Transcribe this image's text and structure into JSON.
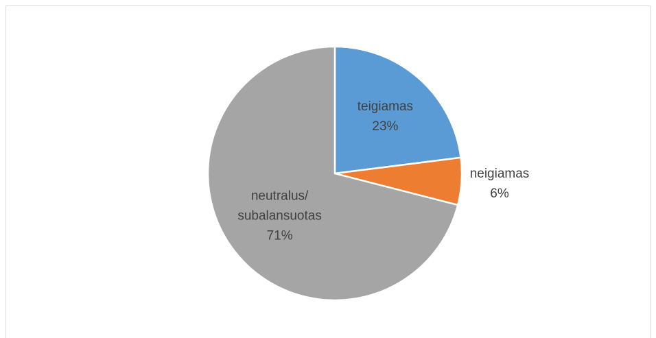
{
  "chart_data": {
    "type": "pie",
    "categories": [
      "teigiamas",
      "neigiamas",
      "neutralus/ subalansuotas"
    ],
    "values": [
      23,
      6,
      71
    ],
    "value_labels": [
      "23%",
      "6%",
      "71%"
    ],
    "colors": [
      "#5b9bd5",
      "#ed7d31",
      "#a5a5a5"
    ]
  }
}
